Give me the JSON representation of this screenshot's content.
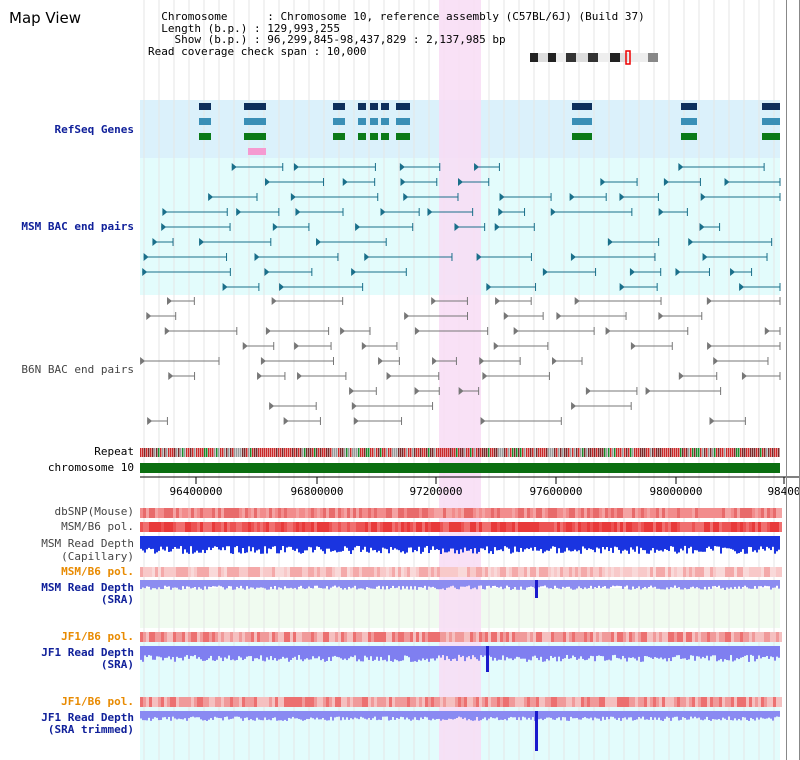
{
  "app_title": "Map View",
  "info": {
    "line1": "  Chromosome      : Chromosome 10, reference assembly (C57BL/6J) (Build 37)",
    "line2": "  Length (b.p.) : 129,993,255",
    "line3": "    Show (b.p.) : 96,299,845-98,437,829 : 2,137,985 bp",
    "line4": "Read coverage check span : 10,000"
  },
  "track_labels": {
    "refseq": "RefSeq Genes",
    "msm_bac": "MSM BAC end pairs",
    "b6n_bac": "B6N BAC end pairs",
    "repeat": "Repeat",
    "chrom": "chromosome 10",
    "dbsnp": "dbSNP(Mouse)",
    "msm_b6_pol": "MSM/B6 pol.",
    "msm_depth_cap_1": "MSM Read Depth",
    "msm_depth_cap_2": "(Capillary)",
    "msm_b6_pol2": "MSM/B6 pol.",
    "msm_depth_sra_1": "MSM Read Depth",
    "msm_depth_sra_2": "(SRA)",
    "jf1_b6_pol": "JF1/B6 pol.",
    "jf1_depth_sra_1": "JF1 Read Depth",
    "jf1_depth_sra_2": "(SRA)",
    "jf1_b6_pol2": "JF1/B6 pol.",
    "jf1_depth_trim_1": "JF1 Read Depth",
    "jf1_depth_trim_2": "(SRA trimmed)"
  },
  "axis": {
    "ticks": [
      "96400000",
      "96800000",
      "97200000",
      "97600000",
      "98000000",
      "98400"
    ]
  },
  "colors": {
    "refseq_bg": "#dbf1fb",
    "track_bg": "#e3fcfc",
    "highlight": "#f8dcf4",
    "chrom_bar": "#0a6e10",
    "label_blue": "#10209a",
    "label_orange": "#e88a00"
  }
}
